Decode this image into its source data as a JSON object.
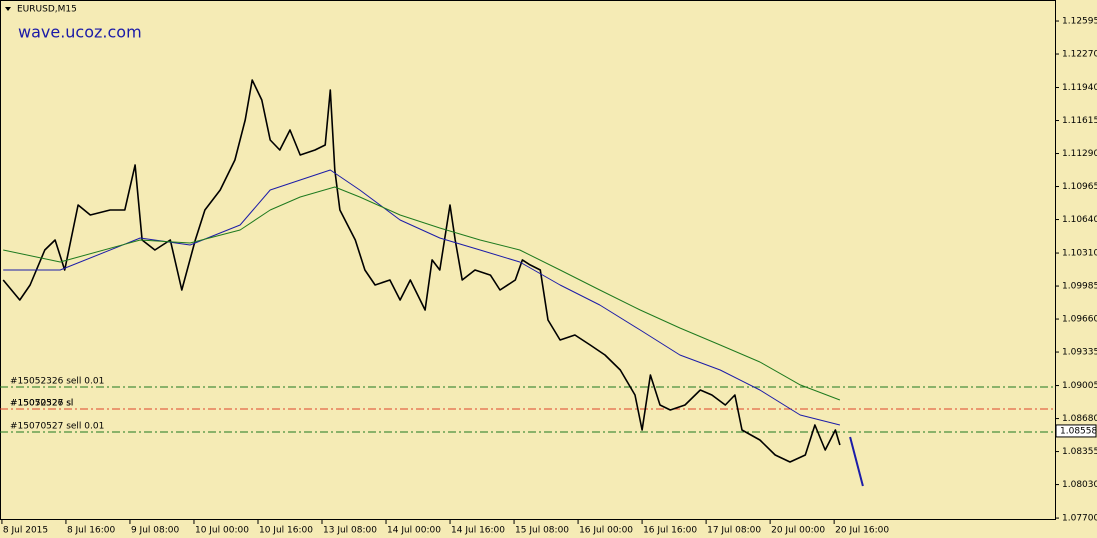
{
  "chart_data": {
    "type": "line",
    "title": "EURUSD,M15",
    "watermark": "wave.ucoz.com",
    "xlim": [
      -0.03,
      16.45
    ],
    "xticks": [
      {
        "value": 0,
        "label": "8 Jul 2015"
      },
      {
        "value": 1,
        "label": "8 Jul 16:00"
      },
      {
        "value": 2,
        "label": "9 Jul 08:00"
      },
      {
        "value": 3,
        "label": "10 Jul 00:00"
      },
      {
        "value": 4,
        "label": "10 Jul 16:00"
      },
      {
        "value": 5,
        "label": "13 Jul 08:00"
      },
      {
        "value": 6,
        "label": "14 Jul 00:00"
      },
      {
        "value": 7,
        "label": "14 Jul 16:00"
      },
      {
        "value": 8,
        "label": "15 Jul 08:00"
      },
      {
        "value": 9,
        "label": "16 Jul 00:00"
      },
      {
        "value": 10,
        "label": "16 Jul 16:00"
      },
      {
        "value": 11,
        "label": "17 Jul 08:00"
      },
      {
        "value": 12,
        "label": "20 Jul 00:00"
      },
      {
        "value": 13,
        "label": "20 Jul 16:00"
      }
    ],
    "ylim": [
      1.07681,
      1.12802
    ],
    "yticks": [
      1.12595,
      {
        "value": 1.1227,
        "label": "1.12270"
      },
      {
        "value": 1.1194,
        "label": "1.11940"
      },
      1.11615,
      {
        "value": 1.1129,
        "label": "1.11290"
      },
      1.10965,
      {
        "value": 1.1064,
        "label": "1.10640"
      },
      {
        "value": 1.1031,
        "label": "1.10310"
      },
      1.09985,
      {
        "value": 1.0966,
        "label": "1.09660"
      },
      1.09335,
      1.09005,
      {
        "value": 1.0868,
        "label": "1.08680"
      },
      1.08355,
      {
        "value": 1.0803,
        "label": "1.08030"
      },
      {
        "value": 1.077,
        "label": "1.07700"
      }
    ],
    "series": [
      {
        "color": "#000000",
        "width": 1.6,
        "x": [
          0.02,
          0.28,
          0.44,
          0.67,
          0.83,
          0.98,
          1.19,
          1.38,
          1.69,
          1.92,
          2.08,
          2.19,
          2.39,
          2.63,
          2.81,
          3.02,
          3.17,
          3.41,
          3.64,
          3.8,
          3.91,
          4.06,
          4.19,
          4.34,
          4.5,
          4.66,
          4.89,
          5.05,
          5.13,
          5.2,
          5.28,
          5.52,
          5.67,
          5.83,
          6.06,
          6.22,
          6.38,
          6.61,
          6.72,
          6.84,
          7.0,
          7.08,
          7.19,
          7.39,
          7.63,
          7.78,
          8.02,
          8.13,
          8.25,
          8.41,
          8.53,
          8.72,
          8.95,
          9.19,
          9.42,
          9.66,
          9.89,
          10.0,
          10.13,
          10.28,
          10.44,
          10.67,
          10.91,
          11.09,
          11.3,
          11.45,
          11.56,
          11.84,
          12.08,
          12.31,
          12.55,
          12.7,
          12.86,
          13.02,
          13.09
        ],
        "values": [
          1.10045,
          1.09848,
          1.09995,
          1.1034,
          1.10438,
          1.10143,
          1.10783,
          1.10685,
          1.10734,
          1.10734,
          1.11177,
          1.10438,
          1.1034,
          1.10438,
          1.09946,
          1.10438,
          1.10734,
          1.10931,
          1.11226,
          1.1162,
          1.12014,
          1.11817,
          1.11423,
          1.11325,
          1.11522,
          1.11276,
          1.11325,
          1.11374,
          1.11916,
          1.11128,
          1.10734,
          1.10438,
          1.10143,
          1.09995,
          1.10045,
          1.09848,
          1.10045,
          1.09749,
          1.10242,
          1.10143,
          1.10783,
          1.10438,
          1.10045,
          1.10143,
          1.10093,
          1.09946,
          1.10045,
          1.10242,
          1.10193,
          1.10143,
          1.09651,
          1.09454,
          1.09503,
          1.09404,
          1.09306,
          1.09158,
          1.08912,
          1.08567,
          1.09109,
          1.08814,
          1.08764,
          1.08814,
          1.08961,
          1.08912,
          1.08814,
          1.08912,
          1.08567,
          1.08469,
          1.08321,
          1.08252,
          1.08321,
          1.08617,
          1.0837,
          1.08567,
          1.0842
        ]
      },
      {
        "color": "#1c1ca8",
        "width": 1,
        "x": [
          0.02,
          0.91,
          2.16,
          2.94,
          3.72,
          4.19,
          4.66,
          5.13,
          5.59,
          6.22,
          6.84,
          7.47,
          8.09,
          8.72,
          9.34,
          9.97,
          10.59,
          11.22,
          11.84,
          12.47,
          13.09
        ],
        "values": [
          1.10143,
          1.10143,
          1.10458,
          1.10389,
          1.10586,
          1.10931,
          1.11029,
          1.11128,
          1.10931,
          1.10635,
          1.10458,
          1.1034,
          1.10222,
          1.09995,
          1.09798,
          1.09552,
          1.09306,
          1.09158,
          1.08961,
          1.08715,
          1.08617
        ]
      },
      {
        "color": "#1f7a1f",
        "width": 1,
        "x": [
          0.02,
          0.91,
          2.16,
          2.94,
          3.72,
          4.19,
          4.66,
          5.2,
          5.59,
          6.22,
          6.84,
          7.47,
          8.09,
          8.72,
          9.34,
          9.97,
          10.59,
          11.22,
          11.84,
          12.47,
          13.09
        ],
        "values": [
          1.1034,
          1.10222,
          1.10438,
          1.10409,
          1.10537,
          1.10734,
          1.10862,
          1.1096,
          1.10862,
          1.10685,
          1.10557,
          1.10438,
          1.1034,
          1.10143,
          1.09946,
          1.09749,
          1.09572,
          1.09404,
          1.09237,
          1.09011,
          1.08863
        ]
      },
      {
        "color": "#1c1ca8",
        "width": 2,
        "x": [
          13.25,
          13.45
        ],
        "values": [
          1.08498,
          1.08016
        ]
      }
    ],
    "levels": [
      {
        "label": "#15052326 sell 0.01",
        "value": 1.08991,
        "color": "#1f7a1f"
      },
      {
        "label": "#15052326 sl",
        "value": 1.08774,
        "color": "#e0442a"
      },
      {
        "label": "#15070527 sl",
        "value": 1.08774,
        "color": "#e0442a"
      },
      {
        "label": "#15070527 sell 0.01",
        "value": 1.08548,
        "color": "#1f7a1f"
      }
    ],
    "current_price": {
      "value": 1.08558,
      "label": "1.08558"
    }
  }
}
